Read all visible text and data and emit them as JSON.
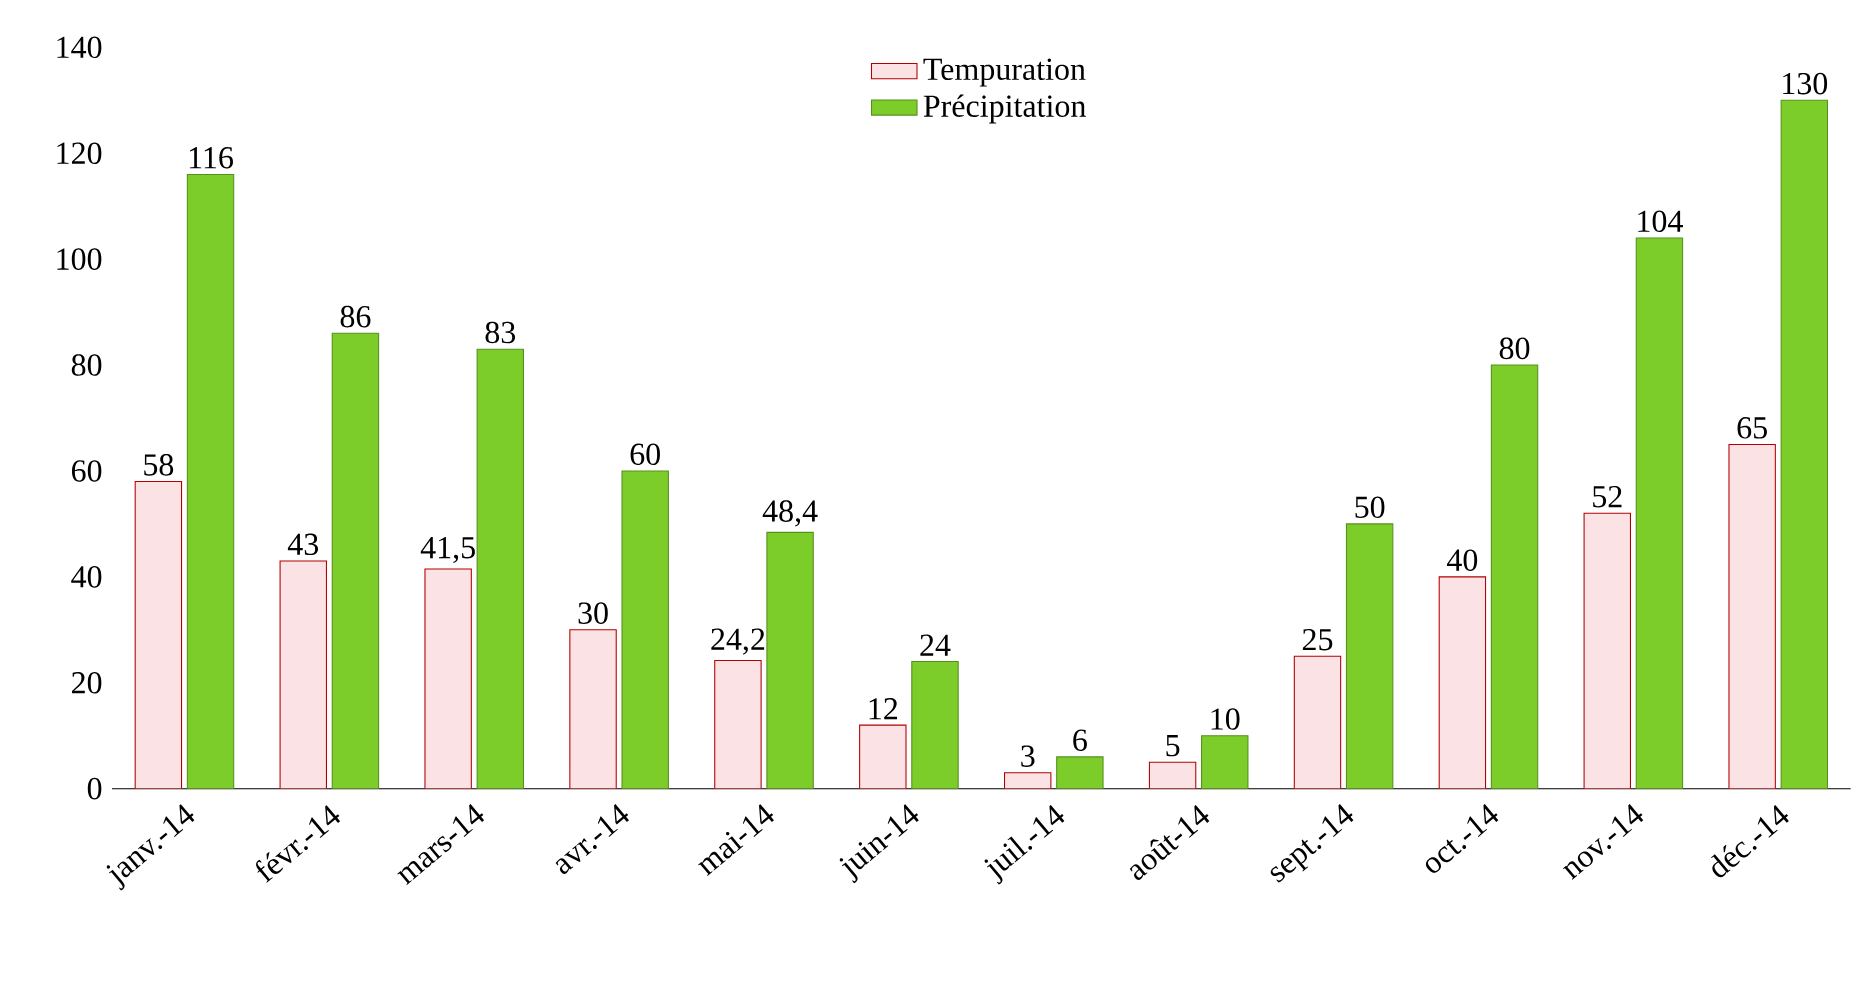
{
  "chart_data": {
    "type": "bar",
    "categories": [
      "janv.-14",
      "févr.-14",
      "mars-14",
      "avr.-14",
      "mai-14",
      "juin-14",
      "juil.-14",
      "août-14",
      "sept.-14",
      "oct.-14",
      "nov.-14",
      "déc.-14"
    ],
    "series": [
      {
        "name": "Tempuration",
        "color": "#fbe3e5",
        "values": [
          58,
          43,
          41.5,
          30,
          24.2,
          12,
          3,
          5,
          25,
          40,
          52,
          65
        ],
        "value_labels": [
          "58",
          "43",
          "41,5",
          "30",
          "24,2",
          "12",
          "3",
          "5",
          "25",
          "40",
          "52",
          "65"
        ]
      },
      {
        "name": "Précipitation",
        "color": "#7ccc2a",
        "values": [
          116,
          86,
          83,
          60,
          48.4,
          24,
          6,
          10,
          50,
          80,
          104,
          130
        ],
        "value_labels": [
          "116",
          "86",
          "83",
          "60",
          "48,4",
          "24",
          "6",
          "10",
          "50",
          "80",
          "104",
          "130"
        ]
      }
    ],
    "ylim": [
      0,
      140
    ],
    "yticks": [
      0,
      20,
      40,
      60,
      80,
      100,
      120,
      140
    ],
    "legend": "top"
  }
}
